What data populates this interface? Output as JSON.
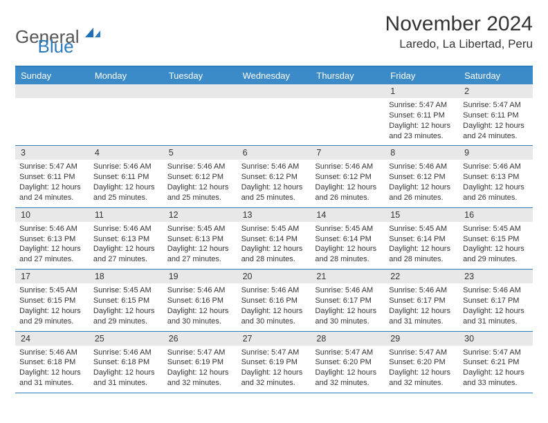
{
  "logo": {
    "gray": "General",
    "blue": "Blue"
  },
  "title": "November 2024",
  "location": "Laredo, La Libertad, Peru",
  "colors": {
    "header_bg": "#3b8bc9",
    "header_text": "#ffffff",
    "border": "#2b7bbd",
    "daynum_bg": "#e8e8e8",
    "text": "#333333",
    "logo_gray": "#555555",
    "logo_blue": "#2b7bbd",
    "page_bg": "#ffffff"
  },
  "typography": {
    "title_fontsize": 30,
    "location_fontsize": 17,
    "dayheader_fontsize": 13,
    "daynum_fontsize": 12.5,
    "content_fontsize": 11,
    "logo_fontsize": 26
  },
  "layout": {
    "columns": 7,
    "rows": 5,
    "cell_min_height": 84
  },
  "day_names": [
    "Sunday",
    "Monday",
    "Tuesday",
    "Wednesday",
    "Thursday",
    "Friday",
    "Saturday"
  ],
  "weeks": [
    [
      {
        "num": "",
        "sunrise": "",
        "sunset": "",
        "daylight": ""
      },
      {
        "num": "",
        "sunrise": "",
        "sunset": "",
        "daylight": ""
      },
      {
        "num": "",
        "sunrise": "",
        "sunset": "",
        "daylight": ""
      },
      {
        "num": "",
        "sunrise": "",
        "sunset": "",
        "daylight": ""
      },
      {
        "num": "",
        "sunrise": "",
        "sunset": "",
        "daylight": ""
      },
      {
        "num": "1",
        "sunrise": "Sunrise: 5:47 AM",
        "sunset": "Sunset: 6:11 PM",
        "daylight": "Daylight: 12 hours and 23 minutes."
      },
      {
        "num": "2",
        "sunrise": "Sunrise: 5:47 AM",
        "sunset": "Sunset: 6:11 PM",
        "daylight": "Daylight: 12 hours and 24 minutes."
      }
    ],
    [
      {
        "num": "3",
        "sunrise": "Sunrise: 5:47 AM",
        "sunset": "Sunset: 6:11 PM",
        "daylight": "Daylight: 12 hours and 24 minutes."
      },
      {
        "num": "4",
        "sunrise": "Sunrise: 5:46 AM",
        "sunset": "Sunset: 6:11 PM",
        "daylight": "Daylight: 12 hours and 25 minutes."
      },
      {
        "num": "5",
        "sunrise": "Sunrise: 5:46 AM",
        "sunset": "Sunset: 6:12 PM",
        "daylight": "Daylight: 12 hours and 25 minutes."
      },
      {
        "num": "6",
        "sunrise": "Sunrise: 5:46 AM",
        "sunset": "Sunset: 6:12 PM",
        "daylight": "Daylight: 12 hours and 25 minutes."
      },
      {
        "num": "7",
        "sunrise": "Sunrise: 5:46 AM",
        "sunset": "Sunset: 6:12 PM",
        "daylight": "Daylight: 12 hours and 26 minutes."
      },
      {
        "num": "8",
        "sunrise": "Sunrise: 5:46 AM",
        "sunset": "Sunset: 6:12 PM",
        "daylight": "Daylight: 12 hours and 26 minutes."
      },
      {
        "num": "9",
        "sunrise": "Sunrise: 5:46 AM",
        "sunset": "Sunset: 6:13 PM",
        "daylight": "Daylight: 12 hours and 26 minutes."
      }
    ],
    [
      {
        "num": "10",
        "sunrise": "Sunrise: 5:46 AM",
        "sunset": "Sunset: 6:13 PM",
        "daylight": "Daylight: 12 hours and 27 minutes."
      },
      {
        "num": "11",
        "sunrise": "Sunrise: 5:46 AM",
        "sunset": "Sunset: 6:13 PM",
        "daylight": "Daylight: 12 hours and 27 minutes."
      },
      {
        "num": "12",
        "sunrise": "Sunrise: 5:45 AM",
        "sunset": "Sunset: 6:13 PM",
        "daylight": "Daylight: 12 hours and 27 minutes."
      },
      {
        "num": "13",
        "sunrise": "Sunrise: 5:45 AM",
        "sunset": "Sunset: 6:14 PM",
        "daylight": "Daylight: 12 hours and 28 minutes."
      },
      {
        "num": "14",
        "sunrise": "Sunrise: 5:45 AM",
        "sunset": "Sunset: 6:14 PM",
        "daylight": "Daylight: 12 hours and 28 minutes."
      },
      {
        "num": "15",
        "sunrise": "Sunrise: 5:45 AM",
        "sunset": "Sunset: 6:14 PM",
        "daylight": "Daylight: 12 hours and 28 minutes."
      },
      {
        "num": "16",
        "sunrise": "Sunrise: 5:45 AM",
        "sunset": "Sunset: 6:15 PM",
        "daylight": "Daylight: 12 hours and 29 minutes."
      }
    ],
    [
      {
        "num": "17",
        "sunrise": "Sunrise: 5:45 AM",
        "sunset": "Sunset: 6:15 PM",
        "daylight": "Daylight: 12 hours and 29 minutes."
      },
      {
        "num": "18",
        "sunrise": "Sunrise: 5:45 AM",
        "sunset": "Sunset: 6:15 PM",
        "daylight": "Daylight: 12 hours and 29 minutes."
      },
      {
        "num": "19",
        "sunrise": "Sunrise: 5:46 AM",
        "sunset": "Sunset: 6:16 PM",
        "daylight": "Daylight: 12 hours and 30 minutes."
      },
      {
        "num": "20",
        "sunrise": "Sunrise: 5:46 AM",
        "sunset": "Sunset: 6:16 PM",
        "daylight": "Daylight: 12 hours and 30 minutes."
      },
      {
        "num": "21",
        "sunrise": "Sunrise: 5:46 AM",
        "sunset": "Sunset: 6:17 PM",
        "daylight": "Daylight: 12 hours and 30 minutes."
      },
      {
        "num": "22",
        "sunrise": "Sunrise: 5:46 AM",
        "sunset": "Sunset: 6:17 PM",
        "daylight": "Daylight: 12 hours and 31 minutes."
      },
      {
        "num": "23",
        "sunrise": "Sunrise: 5:46 AM",
        "sunset": "Sunset: 6:17 PM",
        "daylight": "Daylight: 12 hours and 31 minutes."
      }
    ],
    [
      {
        "num": "24",
        "sunrise": "Sunrise: 5:46 AM",
        "sunset": "Sunset: 6:18 PM",
        "daylight": "Daylight: 12 hours and 31 minutes."
      },
      {
        "num": "25",
        "sunrise": "Sunrise: 5:46 AM",
        "sunset": "Sunset: 6:18 PM",
        "daylight": "Daylight: 12 hours and 31 minutes."
      },
      {
        "num": "26",
        "sunrise": "Sunrise: 5:47 AM",
        "sunset": "Sunset: 6:19 PM",
        "daylight": "Daylight: 12 hours and 32 minutes."
      },
      {
        "num": "27",
        "sunrise": "Sunrise: 5:47 AM",
        "sunset": "Sunset: 6:19 PM",
        "daylight": "Daylight: 12 hours and 32 minutes."
      },
      {
        "num": "28",
        "sunrise": "Sunrise: 5:47 AM",
        "sunset": "Sunset: 6:20 PM",
        "daylight": "Daylight: 12 hours and 32 minutes."
      },
      {
        "num": "29",
        "sunrise": "Sunrise: 5:47 AM",
        "sunset": "Sunset: 6:20 PM",
        "daylight": "Daylight: 12 hours and 32 minutes."
      },
      {
        "num": "30",
        "sunrise": "Sunrise: 5:47 AM",
        "sunset": "Sunset: 6:21 PM",
        "daylight": "Daylight: 12 hours and 33 minutes."
      }
    ]
  ]
}
